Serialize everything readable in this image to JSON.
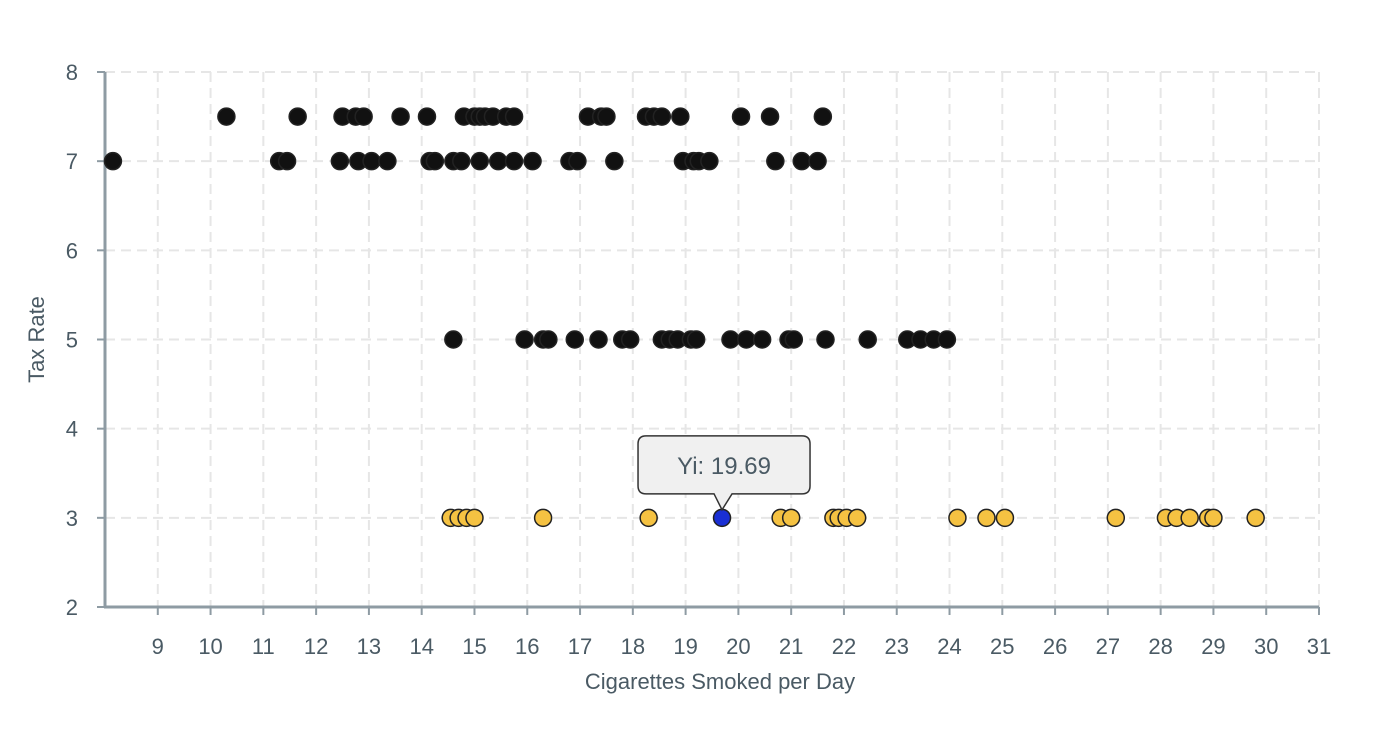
{
  "chart_data": {
    "type": "scatter",
    "xlabel": "Cigarettes Smoked per Day",
    "ylabel": "Tax Rate",
    "xlim": [
      8,
      31
    ],
    "ylim": [
      2,
      8
    ],
    "x_ticks": [
      "9",
      "10",
      "11",
      "12",
      "13",
      "14",
      "15",
      "16",
      "17",
      "18",
      "19",
      "20",
      "21",
      "22",
      "23",
      "24",
      "25",
      "26",
      "27",
      "28",
      "29",
      "30",
      "31"
    ],
    "y_ticks": [
      "2",
      "3",
      "4",
      "5",
      "6",
      "7",
      "8"
    ],
    "grid": true,
    "colors": {
      "default": "#111111",
      "group_low_tax": "#f5c242",
      "highlight": "#1a2fd4",
      "axis": "#8e9ba3",
      "grid": "#e6e6e6"
    },
    "series": [
      {
        "y": 7.5,
        "color": "#111111",
        "x": [
          10.3,
          11.65,
          12.5,
          12.75,
          12.9,
          13.6,
          14.1,
          14.8,
          15.0,
          15.1,
          15.2,
          15.35,
          15.6,
          15.75,
          17.15,
          17.4,
          17.5,
          18.25,
          18.4,
          18.55,
          18.9,
          20.05,
          20.6,
          21.6
        ]
      },
      {
        "y": 7,
        "color": "#111111",
        "x": [
          8.15,
          11.3,
          11.45,
          12.45,
          12.8,
          13.05,
          13.35,
          14.15,
          14.25,
          14.6,
          14.75,
          15.1,
          15.45,
          15.75,
          16.1,
          16.8,
          16.95,
          17.65,
          18.95,
          19.15,
          19.25,
          19.45,
          20.7,
          21.2,
          21.5
        ]
      },
      {
        "y": 5,
        "color": "#111111",
        "x": [
          14.6,
          15.95,
          16.3,
          16.4,
          16.9,
          17.35,
          17.8,
          17.95,
          18.55,
          18.7,
          18.85,
          19.1,
          19.2,
          19.85,
          20.15,
          20.45,
          20.95,
          21.05,
          21.65,
          22.45,
          23.2,
          23.45,
          23.7,
          23.95
        ]
      },
      {
        "y": 3,
        "color": "#f5c242",
        "x": [
          14.55,
          14.7,
          14.85,
          15.0,
          16.3,
          18.3,
          20.8,
          21.0,
          21.8,
          21.9,
          22.05,
          22.25,
          24.15,
          24.7,
          25.05,
          27.15,
          28.1,
          28.3,
          28.55,
          28.9,
          29.0,
          29.8
        ]
      }
    ],
    "highlight_point": {
      "x": 19.69,
      "y": 3,
      "color": "#1a2fd4",
      "label": "Yi: 19.69"
    }
  }
}
